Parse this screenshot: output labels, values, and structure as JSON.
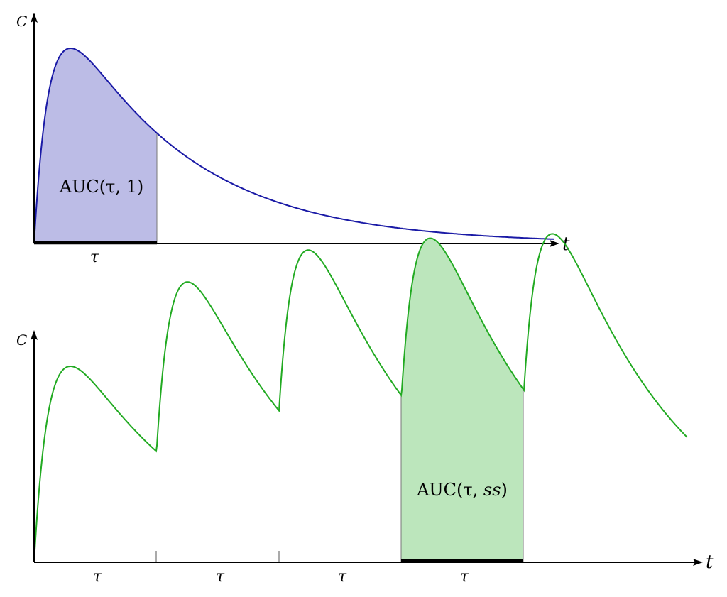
{
  "colors": {
    "single_curve": "#1a1aa6",
    "single_fill": "#bcbce6",
    "multi_curve": "#22aa22",
    "multi_fill": "#bce6bc",
    "axis": "#000000"
  },
  "top_plot": {
    "y_axis_label": "C",
    "x_axis_label": "t",
    "interval_label": "τ",
    "auc_label": "AUC(τ, 1)"
  },
  "bottom_plot": {
    "y_axis_label": "C",
    "x_axis_label": "t",
    "interval_labels": [
      "τ",
      "τ",
      "τ",
      "τ"
    ],
    "auc_label_prefix": "AUC(τ, ",
    "auc_label_var": "ss",
    "auc_label_suffix": ")"
  }
}
